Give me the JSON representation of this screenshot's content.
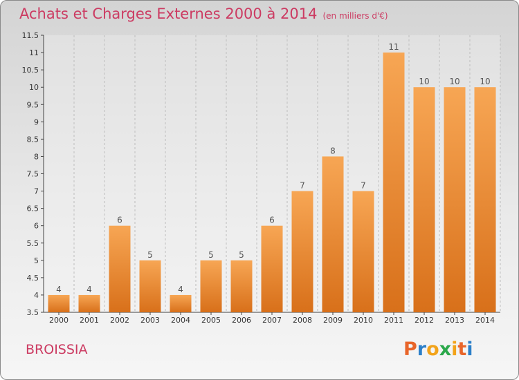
{
  "header": {
    "title": "Achats et Charges Externes 2000 à 2014",
    "unit": "(en milliers d'€)"
  },
  "footer": {
    "place": "BROISSIA",
    "logo_letters": [
      "P",
      "r",
      "o",
      "x",
      "i",
      "t",
      "i"
    ],
    "logo_colors": [
      "#e8652a",
      "#2b7fc9",
      "#f2a31a",
      "#2aa84a",
      "#f2a31a",
      "#e8652a",
      "#2b7fc9"
    ]
  },
  "chart_data": {
    "type": "bar",
    "categories": [
      "2000",
      "2001",
      "2002",
      "2003",
      "2004",
      "2005",
      "2006",
      "2007",
      "2008",
      "2009",
      "2010",
      "2011",
      "2012",
      "2013",
      "2014"
    ],
    "values": [
      4,
      4,
      6,
      5,
      4,
      5,
      5,
      6,
      7,
      8,
      7,
      11,
      10,
      10,
      10
    ],
    "data_labels": [
      "4",
      "4",
      "6",
      "5",
      "4",
      "5",
      "5",
      "6",
      "7",
      "8",
      "7",
      "11",
      "10",
      "10",
      "10"
    ],
    "ylim": [
      3.5,
      11.5
    ],
    "yticks": [
      3.5,
      4,
      4.5,
      5,
      5.5,
      6,
      6.5,
      7,
      7.5,
      8,
      8.5,
      9,
      9.5,
      10,
      10.5,
      11,
      11.5
    ],
    "ytick_labels": [
      "3.5",
      "4",
      "4.5",
      "5",
      "5.5",
      "6",
      "6.5",
      "7",
      "7.5",
      "8",
      "8.5",
      "9",
      "9.5",
      "10",
      "10.5",
      "11",
      "11.5"
    ],
    "grid": "vertical-dashed",
    "colors": {
      "bar_top": "#f7a654",
      "bar_bottom": "#d8701a",
      "label": "#555555",
      "grid": "#bdbdbd"
    }
  }
}
